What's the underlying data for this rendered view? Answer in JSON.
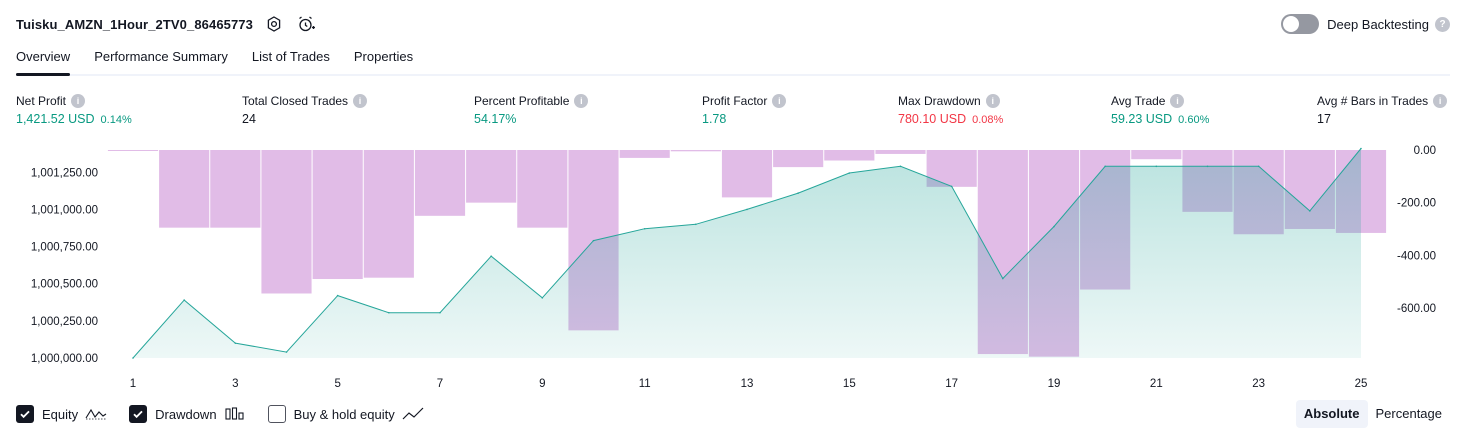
{
  "header": {
    "strategy_name": "Tuisku_AMZN_1Hour_2TV0_86465773",
    "settings_icon": "gear-icon",
    "alert_icon": "alarm-clock-plus-icon",
    "deep_backtesting_label": "Deep Backtesting",
    "deep_backtesting_enabled": false
  },
  "tabs": [
    {
      "label": "Overview",
      "active": true
    },
    {
      "label": "Performance Summary",
      "active": false
    },
    {
      "label": "List of Trades",
      "active": false
    },
    {
      "label": "Properties",
      "active": false
    }
  ],
  "metrics": [
    {
      "label": "Net Profit",
      "value": "1,421.52 USD",
      "pct": "0.14%",
      "color": "green"
    },
    {
      "label": "Total Closed Trades",
      "value": "24",
      "pct": "",
      "color": "dark"
    },
    {
      "label": "Percent Profitable",
      "value": "54.17%",
      "pct": "",
      "color": "green"
    },
    {
      "label": "Profit Factor",
      "value": "1.78",
      "pct": "",
      "color": "green"
    },
    {
      "label": "Max Drawdown",
      "value": "780.10 USD",
      "pct": "0.08%",
      "color": "red"
    },
    {
      "label": "Avg Trade",
      "value": "59.23 USD",
      "pct": "0.60%",
      "color": "green"
    },
    {
      "label": "Avg # Bars in Trades",
      "value": "17",
      "pct": "",
      "color": "dark"
    }
  ],
  "chart_data": {
    "type": "line+bar",
    "x": [
      1,
      2,
      3,
      4,
      5,
      6,
      7,
      8,
      9,
      10,
      11,
      12,
      13,
      14,
      15,
      16,
      17,
      18,
      19,
      20,
      21,
      22,
      23,
      24,
      25
    ],
    "x_tick_labels": [
      "1",
      "3",
      "5",
      "7",
      "9",
      "11",
      "13",
      "15",
      "17",
      "19",
      "21",
      "23",
      "25"
    ],
    "left_axis": {
      "ticks": [
        "1,000,000.00",
        "1,000,250.00",
        "1,000,500.00",
        "1,000,750.00",
        "1,001,000.00",
        "1,001,250.00"
      ],
      "ylim": [
        1000000,
        1001400
      ]
    },
    "right_axis": {
      "ticks": [
        "0.00",
        "-200.00",
        "-400.00",
        "-600.00"
      ],
      "ylim": [
        -790,
        0
      ]
    },
    "series": [
      {
        "name": "Equity",
        "kind": "area-line",
        "color": "#26a69a",
        "axis": "left",
        "values": [
          1000000,
          1000390,
          1000100,
          1000040,
          1000420,
          1000305,
          1000305,
          1000685,
          1000405,
          1000790,
          1000870,
          1000900,
          1001000,
          1001110,
          1001245,
          1001290,
          1001155,
          1000535,
          1000885,
          1001290,
          1001290,
          1001290,
          1001290,
          1000990,
          1001410
        ]
      },
      {
        "name": "Drawdown",
        "kind": "bar",
        "color": "#ce93d8",
        "axis": "right",
        "values": [
          -2,
          -295,
          -295,
          -545,
          -490,
          -485,
          -250,
          -200,
          -295,
          -685,
          -30,
          -5,
          -180,
          -65,
          -40,
          -15,
          -140,
          -775,
          -785,
          -530,
          -35,
          -235,
          -320,
          -300,
          -315
        ]
      }
    ],
    "grid": false
  },
  "legend": [
    {
      "label": "Equity",
      "checked": true,
      "glyph": "equity-line-icon"
    },
    {
      "label": "Drawdown",
      "checked": true,
      "glyph": "drawdown-bars-icon"
    },
    {
      "label": "Buy & hold equity",
      "checked": false,
      "glyph": "buy-hold-line-icon"
    }
  ],
  "mode": {
    "absolute_label": "Absolute",
    "percentage_label": "Percentage",
    "selected": "Absolute"
  }
}
